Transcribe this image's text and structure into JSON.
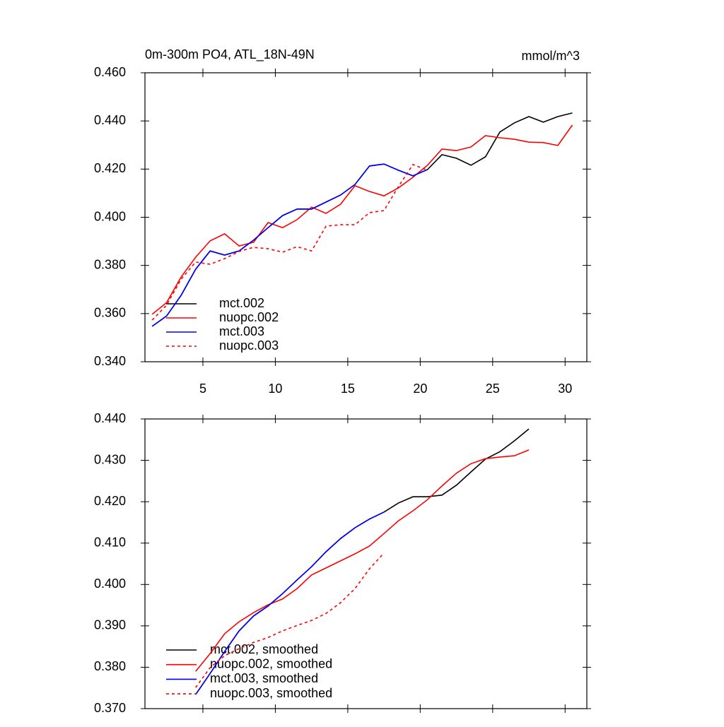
{
  "chart_data": [
    {
      "type": "line",
      "title": "0m-300m PO4, ATL_18N-49N",
      "units": "mmol/m^3",
      "x": [
        1.5,
        2.5,
        3.5,
        4.5,
        5.5,
        6.5,
        7.5,
        8.5,
        9.5,
        10.5,
        11.5,
        12.5,
        13.5,
        14.5,
        15.5,
        16.5,
        17.5,
        18.5,
        19.5,
        20.5,
        21.5,
        22.5,
        23.5,
        24.5,
        25.5,
        26.5,
        27.5,
        28.5,
        29.5,
        30.5
      ],
      "xlim": [
        1,
        31.5
      ],
      "xticks": [
        5,
        10,
        15,
        20,
        25,
        30
      ],
      "ylim": [
        0.34,
        0.46
      ],
      "yticks": [
        {
          "value": 0.34,
          "label": "0.340"
        },
        {
          "value": 0.36,
          "label": "0.360"
        },
        {
          "value": 0.38,
          "label": "0.380"
        },
        {
          "value": 0.4,
          "label": "0.400"
        },
        {
          "value": 0.42,
          "label": "0.420"
        },
        {
          "value": 0.44,
          "label": "0.440"
        },
        {
          "value": 0.46,
          "label": "0.460"
        }
      ],
      "series": [
        {
          "name": "mct.002",
          "color": "#000000",
          "line_style": "solid",
          "values": [
            0.3547,
            0.359,
            0.3676,
            0.3784,
            0.386,
            0.3843,
            0.386,
            0.3905,
            0.3957,
            0.4007,
            0.4034,
            0.4034,
            0.4063,
            0.4092,
            0.4136,
            0.4213,
            0.4221,
            0.4195,
            0.4172,
            0.4198,
            0.426,
            0.4245,
            0.4216,
            0.4251,
            0.4354,
            0.4392,
            0.4418,
            0.4395,
            0.4418,
            0.4433
          ]
        },
        {
          "name": "nuopc.002",
          "color": "#ff0000",
          "line_style": "solid",
          "values": [
            0.3597,
            0.3646,
            0.3752,
            0.3834,
            0.3902,
            0.3931,
            0.3881,
            0.3896,
            0.3978,
            0.3957,
            0.399,
            0.4042,
            0.4016,
            0.4054,
            0.4131,
            0.4107,
            0.4089,
            0.4122,
            0.4166,
            0.4216,
            0.4283,
            0.4277,
            0.4292,
            0.4339,
            0.433,
            0.4324,
            0.4312,
            0.431,
            0.4298,
            0.4383
          ]
        },
        {
          "name": "mct.003",
          "color": "#0000ff",
          "line_style": "solid",
          "values": [
            0.3547,
            0.359,
            0.3676,
            0.3784,
            0.386,
            0.3843,
            0.386,
            0.3905,
            0.3957,
            0.4007,
            0.4034,
            0.4034,
            0.4063,
            0.4092,
            0.4136,
            0.4213,
            0.4221,
            0.4195,
            0.4172,
            0.4198,
            null,
            null,
            null,
            null,
            null,
            null,
            null,
            null,
            null,
            null
          ]
        },
        {
          "name": "nuopc.003",
          "color": "#ff0000",
          "line_style": "dashed",
          "values": [
            0.3573,
            0.3635,
            0.3743,
            0.3814,
            0.3805,
            0.3828,
            0.3858,
            0.3875,
            0.3869,
            0.3855,
            0.3878,
            0.386,
            0.3963,
            0.3969,
            0.3969,
            0.4019,
            0.4028,
            0.4128,
            0.4219,
            0.4195,
            null,
            null,
            null,
            null,
            null,
            null,
            null,
            null,
            null,
            null
          ]
        }
      ]
    },
    {
      "type": "line",
      "x": [
        1.5,
        2.5,
        3.5,
        4.5,
        5.5,
        6.5,
        7.5,
        8.5,
        9.5,
        10.5,
        11.5,
        12.5,
        13.5,
        14.5,
        15.5,
        16.5,
        17.5,
        18.5,
        19.5,
        20.5,
        21.5,
        22.5,
        23.5,
        24.5,
        25.5,
        26.5,
        27.5,
        28.5,
        29.5,
        30.5
      ],
      "xlim": [
        1,
        31.5
      ],
      "xticks": [
        5,
        10,
        15,
        20,
        25,
        30
      ],
      "ylim": [
        0.37,
        0.44
      ],
      "yticks": [
        {
          "value": 0.37,
          "label": "0.370"
        },
        {
          "value": 0.38,
          "label": "0.380"
        },
        {
          "value": 0.39,
          "label": "0.390"
        },
        {
          "value": 0.4,
          "label": "0.400"
        },
        {
          "value": 0.41,
          "label": "0.410"
        },
        {
          "value": 0.42,
          "label": "0.420"
        },
        {
          "value": 0.43,
          "label": "0.430"
        },
        {
          "value": 0.44,
          "label": "0.440"
        }
      ],
      "series": [
        {
          "name": "mct.002, smoothed",
          "color": "#000000",
          "line_style": "solid",
          "values": [
            null,
            null,
            null,
            0.3734,
            0.3785,
            0.3838,
            0.3888,
            0.3924,
            0.3948,
            0.3978,
            0.4011,
            0.4043,
            0.4079,
            0.4111,
            0.4137,
            0.4158,
            0.4175,
            0.4197,
            0.4212,
            0.4212,
            0.4216,
            0.424,
            0.4272,
            0.4303,
            0.4321,
            0.4347,
            0.4376,
            null,
            null,
            null
          ]
        },
        {
          "name": "nuopc.002, smoothed",
          "color": "#ff0000",
          "line_style": "solid",
          "values": [
            null,
            null,
            null,
            0.379,
            0.3833,
            0.3881,
            0.391,
            0.3932,
            0.3951,
            0.3965,
            0.399,
            0.4023,
            0.404,
            0.4057,
            0.4074,
            0.4093,
            0.4123,
            0.4154,
            0.4178,
            0.4205,
            0.4238,
            0.4269,
            0.4292,
            0.4304,
            0.4308,
            0.4311,
            0.4325,
            null,
            null,
            null
          ]
        },
        {
          "name": "mct.003, smoothed",
          "color": "#0000ff",
          "line_style": "solid",
          "values": [
            null,
            null,
            null,
            0.3734,
            0.3785,
            0.3838,
            0.3888,
            0.3924,
            0.3948,
            0.3978,
            0.4011,
            0.4043,
            0.4079,
            0.4111,
            0.4137,
            0.4158,
            0.4175,
            null,
            null,
            null,
            null,
            null,
            null,
            null,
            null,
            null,
            null,
            null,
            null,
            null
          ]
        },
        {
          "name": "nuopc.003, smoothed",
          "color": "#ff0000",
          "line_style": "dashed",
          "values": [
            null,
            null,
            null,
            0.3751,
            0.3799,
            0.3828,
            0.3845,
            0.386,
            0.3872,
            0.3888,
            0.3901,
            0.3913,
            0.393,
            0.3956,
            0.399,
            0.4038,
            0.4076,
            null,
            null,
            null,
            null,
            null,
            null,
            null,
            null,
            null,
            null,
            null,
            null,
            null
          ]
        }
      ]
    }
  ]
}
